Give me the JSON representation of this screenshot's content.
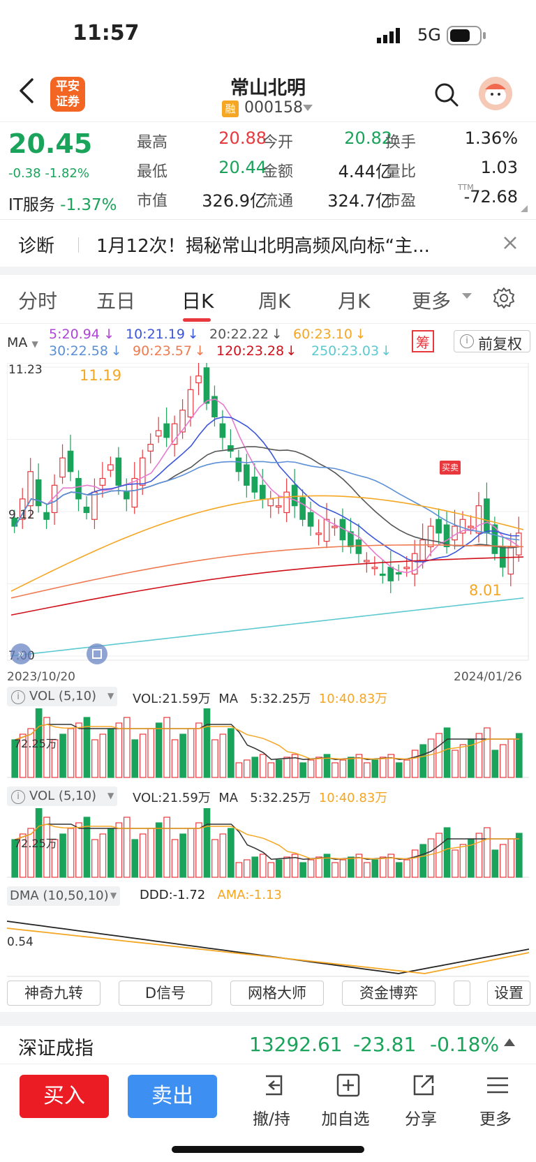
{
  "status": {
    "time": "11:57",
    "network": "5G"
  },
  "header": {
    "logo_line1": "平安",
    "logo_line2": "证券",
    "stock_name": "常山北明",
    "rong_badge": "融",
    "code": "000158"
  },
  "quote": {
    "price": "20.45",
    "change": "-0.38",
    "change_pct": "-1.82%",
    "sector_name": "IT服务",
    "sector_pct": "-1.37%",
    "rows": [
      [
        {
          "label": "最高",
          "value": "20.88",
          "color": "red"
        },
        {
          "label": "今开",
          "value": "20.82",
          "color": "green"
        },
        {
          "label": "换手",
          "value": "1.36%",
          "color": "dark"
        }
      ],
      [
        {
          "label": "最低",
          "value": "20.44",
          "color": "green"
        },
        {
          "label": "金额",
          "value": "4.44亿",
          "color": "dark"
        },
        {
          "label": "量比",
          "value": "1.03",
          "color": "dark"
        }
      ],
      [
        {
          "label": "市值",
          "value": "326.9亿",
          "color": "dark"
        },
        {
          "label": "流通",
          "value": "324.7亿",
          "color": "dark"
        },
        {
          "label": "市盈",
          "value": "-72.68",
          "color": "dark",
          "sup": "TTM"
        }
      ]
    ]
  },
  "diagnose": {
    "label": "诊断",
    "text": "1月12次！揭秘常山北明高频风向标“主..."
  },
  "tabs": [
    "分时",
    "五日",
    "日K",
    "周K",
    "月K",
    "更多"
  ],
  "active_tab": "日K",
  "ma_legend": {
    "prefix": "MA",
    "row1": [
      {
        "text": "5:20.94",
        "color": "#b044d6"
      },
      {
        "text": "10:21.19",
        "color": "#3b56d9"
      },
      {
        "text": "20:22.22",
        "color": "#555555"
      },
      {
        "text": "60:23.10",
        "color": "#f5a623"
      }
    ],
    "row2": [
      {
        "text": "30:22.58",
        "color": "#5b8fd6"
      },
      {
        "text": "90:23.57",
        "color": "#f07a50"
      },
      {
        "text": "120:23.28",
        "color": "#d0101a"
      },
      {
        "text": "250:23.03",
        "color": "#5cc9d0"
      }
    ],
    "chou": "筹",
    "fq": "前复权"
  },
  "kline": {
    "axis_top": "11.23",
    "axis_mid": "9.12",
    "axis_bottom": "7.00",
    "hi_label": "11.19",
    "lo_label": "8.01",
    "date_start": "2023/10/20",
    "date_end": "2024/01/26",
    "marker": "买卖"
  },
  "vol1": {
    "name": "VOL (5,10)",
    "vol": "VOL:21.59万",
    "ma": "MA",
    "ma5": "5:32.25万",
    "ma10": "10:40.83万",
    "axis": "72.25万"
  },
  "vol2": {
    "name": "VOL (5,10)",
    "vol": "VOL:21.59万",
    "ma": "MA",
    "ma5": "5:32.25万",
    "ma10": "10:40.83万",
    "axis": "72.25万"
  },
  "dma": {
    "name": "DMA (10,50,10)",
    "ddd": "DDD:-1.72",
    "ama": "AMA:-1.13",
    "axis": "0.54"
  },
  "tools": [
    "神奇九转",
    "D信号",
    "网格大师",
    "资金博弈",
    "设置"
  ],
  "index": {
    "name": "深证成指",
    "value": "13292.61",
    "change": "-23.81",
    "pct": "-0.18%"
  },
  "bottom": {
    "buy": "买入",
    "sell": "卖出",
    "actions": [
      "撤/持",
      "加自选",
      "分享",
      "更多"
    ]
  },
  "colors": {
    "up": "#e8383d",
    "down": "#1aa35a",
    "buy": "#ec1c24",
    "sell": "#3d8ff2"
  }
}
